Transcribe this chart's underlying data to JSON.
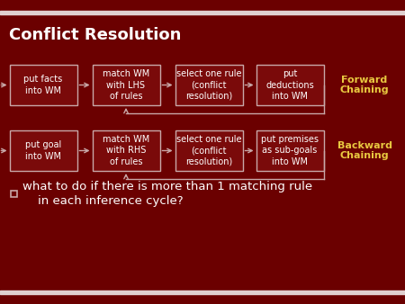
{
  "title": "Conflict Resolution",
  "background_color": "#6b0000",
  "title_color": "#ffffff",
  "box_bg_color": "#7a0a0a",
  "box_edge_color": "#c8a8a8",
  "text_color": "#ffffff",
  "arrow_color": "#c8a8a8",
  "label_color": "#e8c840",
  "top_bar_color": "#e0d0d0",
  "bottom_bar_color": "#e0d0d0",
  "forward_boxes": [
    "put facts\ninto WM",
    "match WM\nwith LHS\nof rules",
    "select one rule\n(conflict\nresolution)",
    "put\ndeductions\ninto WM"
  ],
  "backward_boxes": [
    "put goal\ninto WM",
    "match WM\nwith RHS\nof rules",
    "select one rule\n(conflict\nresolution)",
    "put premises\nas sub-goals\ninto WM"
  ],
  "forward_label": "Forward\nChaining",
  "backward_label": "Backward\nChaining",
  "bullet_text_line1": "□  what to do if there is more than 1 matching rule",
  "bullet_text_line2": "    in each inference cycle?"
}
